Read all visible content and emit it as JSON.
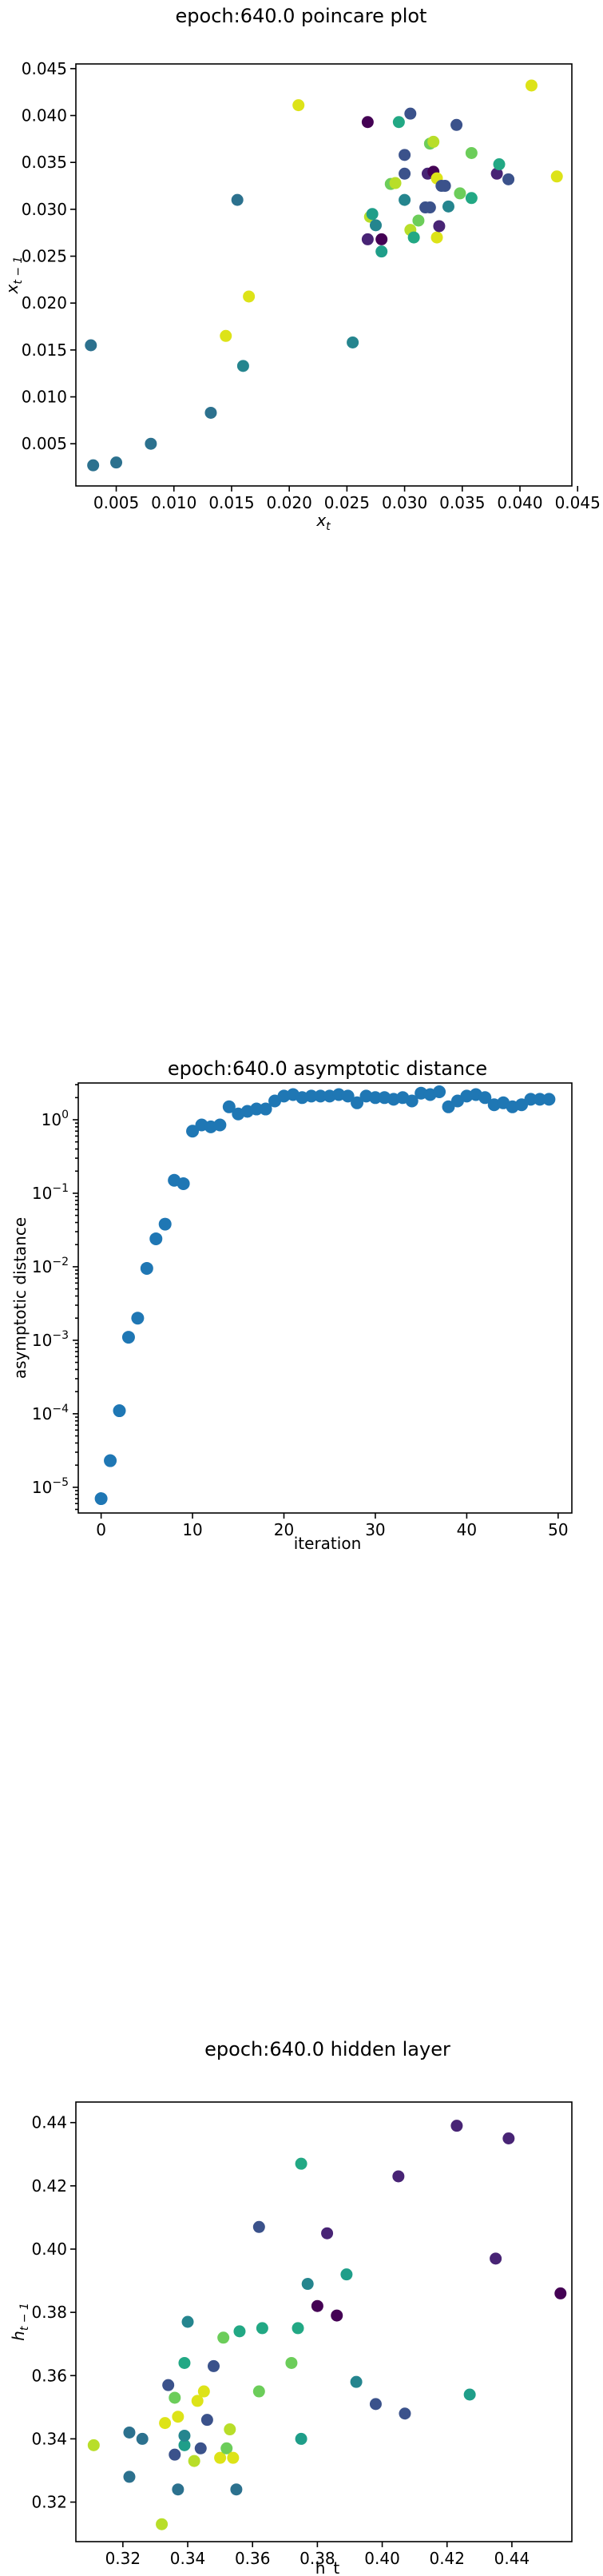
{
  "chart_data": [
    {
      "type": "scatter",
      "title": "epoch:640.0 poincare plot",
      "xlabel": "x_t",
      "ylabel": "x_{t-1}",
      "xlim": [
        0.0015,
        0.0445
      ],
      "ylim": [
        0.0005,
        0.0455
      ],
      "xticks": [
        0.005,
        0.01,
        0.015,
        0.02,
        0.025,
        0.03,
        0.035,
        0.04,
        0.045
      ],
      "yticks": [
        0.005,
        0.01,
        0.015,
        0.02,
        0.025,
        0.03,
        0.035,
        0.04,
        0.045
      ],
      "tick_decimals": 3,
      "grid": false,
      "points": [
        {
          "x": 0.0028,
          "y": 0.0155,
          "color": "#2c718e"
        },
        {
          "x": 0.003,
          "y": 0.0027,
          "color": "#2c718e"
        },
        {
          "x": 0.005,
          "y": 0.003,
          "color": "#2c718e"
        },
        {
          "x": 0.008,
          "y": 0.005,
          "color": "#2c718e"
        },
        {
          "x": 0.0132,
          "y": 0.0083,
          "color": "#2c718e"
        },
        {
          "x": 0.0145,
          "y": 0.0165,
          "color": "#dde318"
        },
        {
          "x": 0.0155,
          "y": 0.031,
          "color": "#2c718e"
        },
        {
          "x": 0.016,
          "y": 0.0133,
          "color": "#25858e"
        },
        {
          "x": 0.0165,
          "y": 0.0207,
          "color": "#dde318"
        },
        {
          "x": 0.0208,
          "y": 0.0411,
          "color": "#dde318"
        },
        {
          "x": 0.0255,
          "y": 0.0158,
          "color": "#25858e"
        },
        {
          "x": 0.0268,
          "y": 0.0393,
          "color": "#440154"
        },
        {
          "x": 0.0268,
          "y": 0.0268,
          "color": "#482475"
        },
        {
          "x": 0.027,
          "y": 0.0292,
          "color": "#b8de29"
        },
        {
          "x": 0.0272,
          "y": 0.0295,
          "color": "#1f9e89"
        },
        {
          "x": 0.0275,
          "y": 0.0283,
          "color": "#25858e"
        },
        {
          "x": 0.028,
          "y": 0.0268,
          "color": "#440154"
        },
        {
          "x": 0.028,
          "y": 0.0255,
          "color": "#1f9e89"
        },
        {
          "x": 0.0288,
          "y": 0.0327,
          "color": "#6ccd5a"
        },
        {
          "x": 0.0292,
          "y": 0.0328,
          "color": "#b8de29"
        },
        {
          "x": 0.0295,
          "y": 0.0393,
          "color": "#22a884"
        },
        {
          "x": 0.03,
          "y": 0.0338,
          "color": "#3b528b"
        },
        {
          "x": 0.03,
          "y": 0.0358,
          "color": "#3b528b"
        },
        {
          "x": 0.03,
          "y": 0.031,
          "color": "#25858e"
        },
        {
          "x": 0.0305,
          "y": 0.0402,
          "color": "#3b528b"
        },
        {
          "x": 0.0305,
          "y": 0.0278,
          "color": "#b8de29"
        },
        {
          "x": 0.0308,
          "y": 0.027,
          "color": "#22a884"
        },
        {
          "x": 0.0312,
          "y": 0.0288,
          "color": "#6ccd5a"
        },
        {
          "x": 0.0318,
          "y": 0.0302,
          "color": "#3b528b"
        },
        {
          "x": 0.032,
          "y": 0.0338,
          "color": "#482475"
        },
        {
          "x": 0.0322,
          "y": 0.0302,
          "color": "#3b528b"
        },
        {
          "x": 0.0322,
          "y": 0.037,
          "color": "#6ccd5a"
        },
        {
          "x": 0.0325,
          "y": 0.0372,
          "color": "#b8de29"
        },
        {
          "x": 0.0325,
          "y": 0.034,
          "color": "#440154"
        },
        {
          "x": 0.0328,
          "y": 0.027,
          "color": "#dde318"
        },
        {
          "x": 0.0328,
          "y": 0.0333,
          "color": "#dde318"
        },
        {
          "x": 0.033,
          "y": 0.0282,
          "color": "#482475"
        },
        {
          "x": 0.0332,
          "y": 0.0325,
          "color": "#3b528b"
        },
        {
          "x": 0.0335,
          "y": 0.0325,
          "color": "#3b528b"
        },
        {
          "x": 0.0338,
          "y": 0.0303,
          "color": "#25858e"
        },
        {
          "x": 0.0345,
          "y": 0.039,
          "color": "#3b528b"
        },
        {
          "x": 0.0348,
          "y": 0.0317,
          "color": "#6ccd5a"
        },
        {
          "x": 0.0358,
          "y": 0.036,
          "color": "#6ccd5a"
        },
        {
          "x": 0.0358,
          "y": 0.0312,
          "color": "#22a884"
        },
        {
          "x": 0.038,
          "y": 0.0338,
          "color": "#482475"
        },
        {
          "x": 0.0382,
          "y": 0.0348,
          "color": "#22a884"
        },
        {
          "x": 0.039,
          "y": 0.0332,
          "color": "#3b528b"
        },
        {
          "x": 0.041,
          "y": 0.0432,
          "color": "#dde318"
        },
        {
          "x": 0.0432,
          "y": 0.0335,
          "color": "#dde318"
        }
      ]
    },
    {
      "type": "scatter",
      "scale_y": "log",
      "title": "epoch:640.0 asymptotic distance",
      "xlabel": "iteration",
      "ylabel": "asymptotic distance",
      "xlim": [
        -2.5,
        51.5
      ],
      "ylim_log10": [
        -5.35,
        0.5
      ],
      "xticks": [
        0,
        10,
        20,
        30,
        40,
        50
      ],
      "yticks_exp": [
        -5,
        -4,
        -3,
        -2,
        -1,
        0
      ],
      "grid": false,
      "color": "#1f77b4",
      "x": [
        0,
        1,
        2,
        3,
        4,
        5,
        6,
        7,
        8,
        9,
        10,
        11,
        12,
        13,
        14,
        15,
        16,
        17,
        18,
        19,
        20,
        21,
        22,
        23,
        24,
        25,
        26,
        27,
        28,
        29,
        30,
        31,
        32,
        33,
        34,
        35,
        36,
        37,
        38,
        39,
        40,
        41,
        42,
        43,
        44,
        45,
        46,
        47,
        48,
        49
      ],
      "values": [
        7e-06,
        2.3e-05,
        0.00011,
        0.0011,
        0.002,
        0.0095,
        0.024,
        0.038,
        0.15,
        0.135,
        0.7,
        0.85,
        0.8,
        0.85,
        1.5,
        1.2,
        1.3,
        1.4,
        1.4,
        1.8,
        2.1,
        2.2,
        2.0,
        2.1,
        2.1,
        2.1,
        2.2,
        2.1,
        1.7,
        2.1,
        2.0,
        2.0,
        1.9,
        2.0,
        1.8,
        2.3,
        2.2,
        2.4,
        1.5,
        1.8,
        2.1,
        2.2,
        2.0,
        1.6,
        1.7,
        1.5,
        1.6,
        1.9,
        1.9,
        1.9
      ]
    },
    {
      "type": "scatter",
      "title": "epoch:640.0 hidden layer",
      "xlabel": "h_t",
      "ylabel": "h_{t-1}",
      "xlim": [
        0.3055,
        0.4585
      ],
      "ylim": [
        0.3075,
        0.4465
      ],
      "xticks": [
        0.32,
        0.34,
        0.36,
        0.38,
        0.4,
        0.42,
        0.44
      ],
      "yticks": [
        0.32,
        0.34,
        0.36,
        0.38,
        0.4,
        0.42,
        0.44
      ],
      "tick_decimals": 2,
      "grid": false,
      "points": [
        {
          "x": 0.311,
          "y": 0.338,
          "color": "#b8de29"
        },
        {
          "x": 0.322,
          "y": 0.328,
          "color": "#2c718e"
        },
        {
          "x": 0.322,
          "y": 0.342,
          "color": "#2c718e"
        },
        {
          "x": 0.326,
          "y": 0.34,
          "color": "#2c718e"
        },
        {
          "x": 0.332,
          "y": 0.313,
          "color": "#b8de29"
        },
        {
          "x": 0.333,
          "y": 0.345,
          "color": "#dde318"
        },
        {
          "x": 0.334,
          "y": 0.357,
          "color": "#3b528b"
        },
        {
          "x": 0.336,
          "y": 0.335,
          "color": "#3b528b"
        },
        {
          "x": 0.336,
          "y": 0.353,
          "color": "#6ccd5a"
        },
        {
          "x": 0.337,
          "y": 0.324,
          "color": "#2c718e"
        },
        {
          "x": 0.337,
          "y": 0.347,
          "color": "#dde318"
        },
        {
          "x": 0.339,
          "y": 0.338,
          "color": "#1f9e89"
        },
        {
          "x": 0.339,
          "y": 0.341,
          "color": "#25858e"
        },
        {
          "x": 0.339,
          "y": 0.364,
          "color": "#22a884"
        },
        {
          "x": 0.34,
          "y": 0.377,
          "color": "#25858e"
        },
        {
          "x": 0.342,
          "y": 0.333,
          "color": "#b8de29"
        },
        {
          "x": 0.343,
          "y": 0.352,
          "color": "#dde318"
        },
        {
          "x": 0.344,
          "y": 0.337,
          "color": "#3b528b"
        },
        {
          "x": 0.345,
          "y": 0.355,
          "color": "#dde318"
        },
        {
          "x": 0.346,
          "y": 0.346,
          "color": "#3b528b"
        },
        {
          "x": 0.348,
          "y": 0.363,
          "color": "#3b528b"
        },
        {
          "x": 0.35,
          "y": 0.334,
          "color": "#dde318"
        },
        {
          "x": 0.351,
          "y": 0.372,
          "color": "#6ccd5a"
        },
        {
          "x": 0.352,
          "y": 0.337,
          "color": "#6ccd5a"
        },
        {
          "x": 0.353,
          "y": 0.343,
          "color": "#b8de29"
        },
        {
          "x": 0.354,
          "y": 0.334,
          "color": "#dde318"
        },
        {
          "x": 0.355,
          "y": 0.324,
          "color": "#2c718e"
        },
        {
          "x": 0.356,
          "y": 0.374,
          "color": "#22a884"
        },
        {
          "x": 0.362,
          "y": 0.355,
          "color": "#6ccd5a"
        },
        {
          "x": 0.362,
          "y": 0.407,
          "color": "#3b528b"
        },
        {
          "x": 0.363,
          "y": 0.375,
          "color": "#22a884"
        },
        {
          "x": 0.372,
          "y": 0.364,
          "color": "#6ccd5a"
        },
        {
          "x": 0.374,
          "y": 0.375,
          "color": "#22a884"
        },
        {
          "x": 0.375,
          "y": 0.427,
          "color": "#22a884"
        },
        {
          "x": 0.375,
          "y": 0.34,
          "color": "#1f9e89"
        },
        {
          "x": 0.377,
          "y": 0.389,
          "color": "#25858e"
        },
        {
          "x": 0.38,
          "y": 0.382,
          "color": "#440154"
        },
        {
          "x": 0.383,
          "y": 0.405,
          "color": "#482475"
        },
        {
          "x": 0.386,
          "y": 0.379,
          "color": "#440154"
        },
        {
          "x": 0.389,
          "y": 0.392,
          "color": "#1f9e89"
        },
        {
          "x": 0.392,
          "y": 0.358,
          "color": "#25858e"
        },
        {
          "x": 0.398,
          "y": 0.351,
          "color": "#3b528b"
        },
        {
          "x": 0.405,
          "y": 0.423,
          "color": "#482475"
        },
        {
          "x": 0.407,
          "y": 0.348,
          "color": "#3b528b"
        },
        {
          "x": 0.423,
          "y": 0.439,
          "color": "#482475"
        },
        {
          "x": 0.427,
          "y": 0.354,
          "color": "#1f9e89"
        },
        {
          "x": 0.435,
          "y": 0.397,
          "color": "#482475"
        },
        {
          "x": 0.439,
          "y": 0.435,
          "color": "#482475"
        },
        {
          "x": 0.455,
          "y": 0.386,
          "color": "#440154"
        }
      ]
    }
  ]
}
